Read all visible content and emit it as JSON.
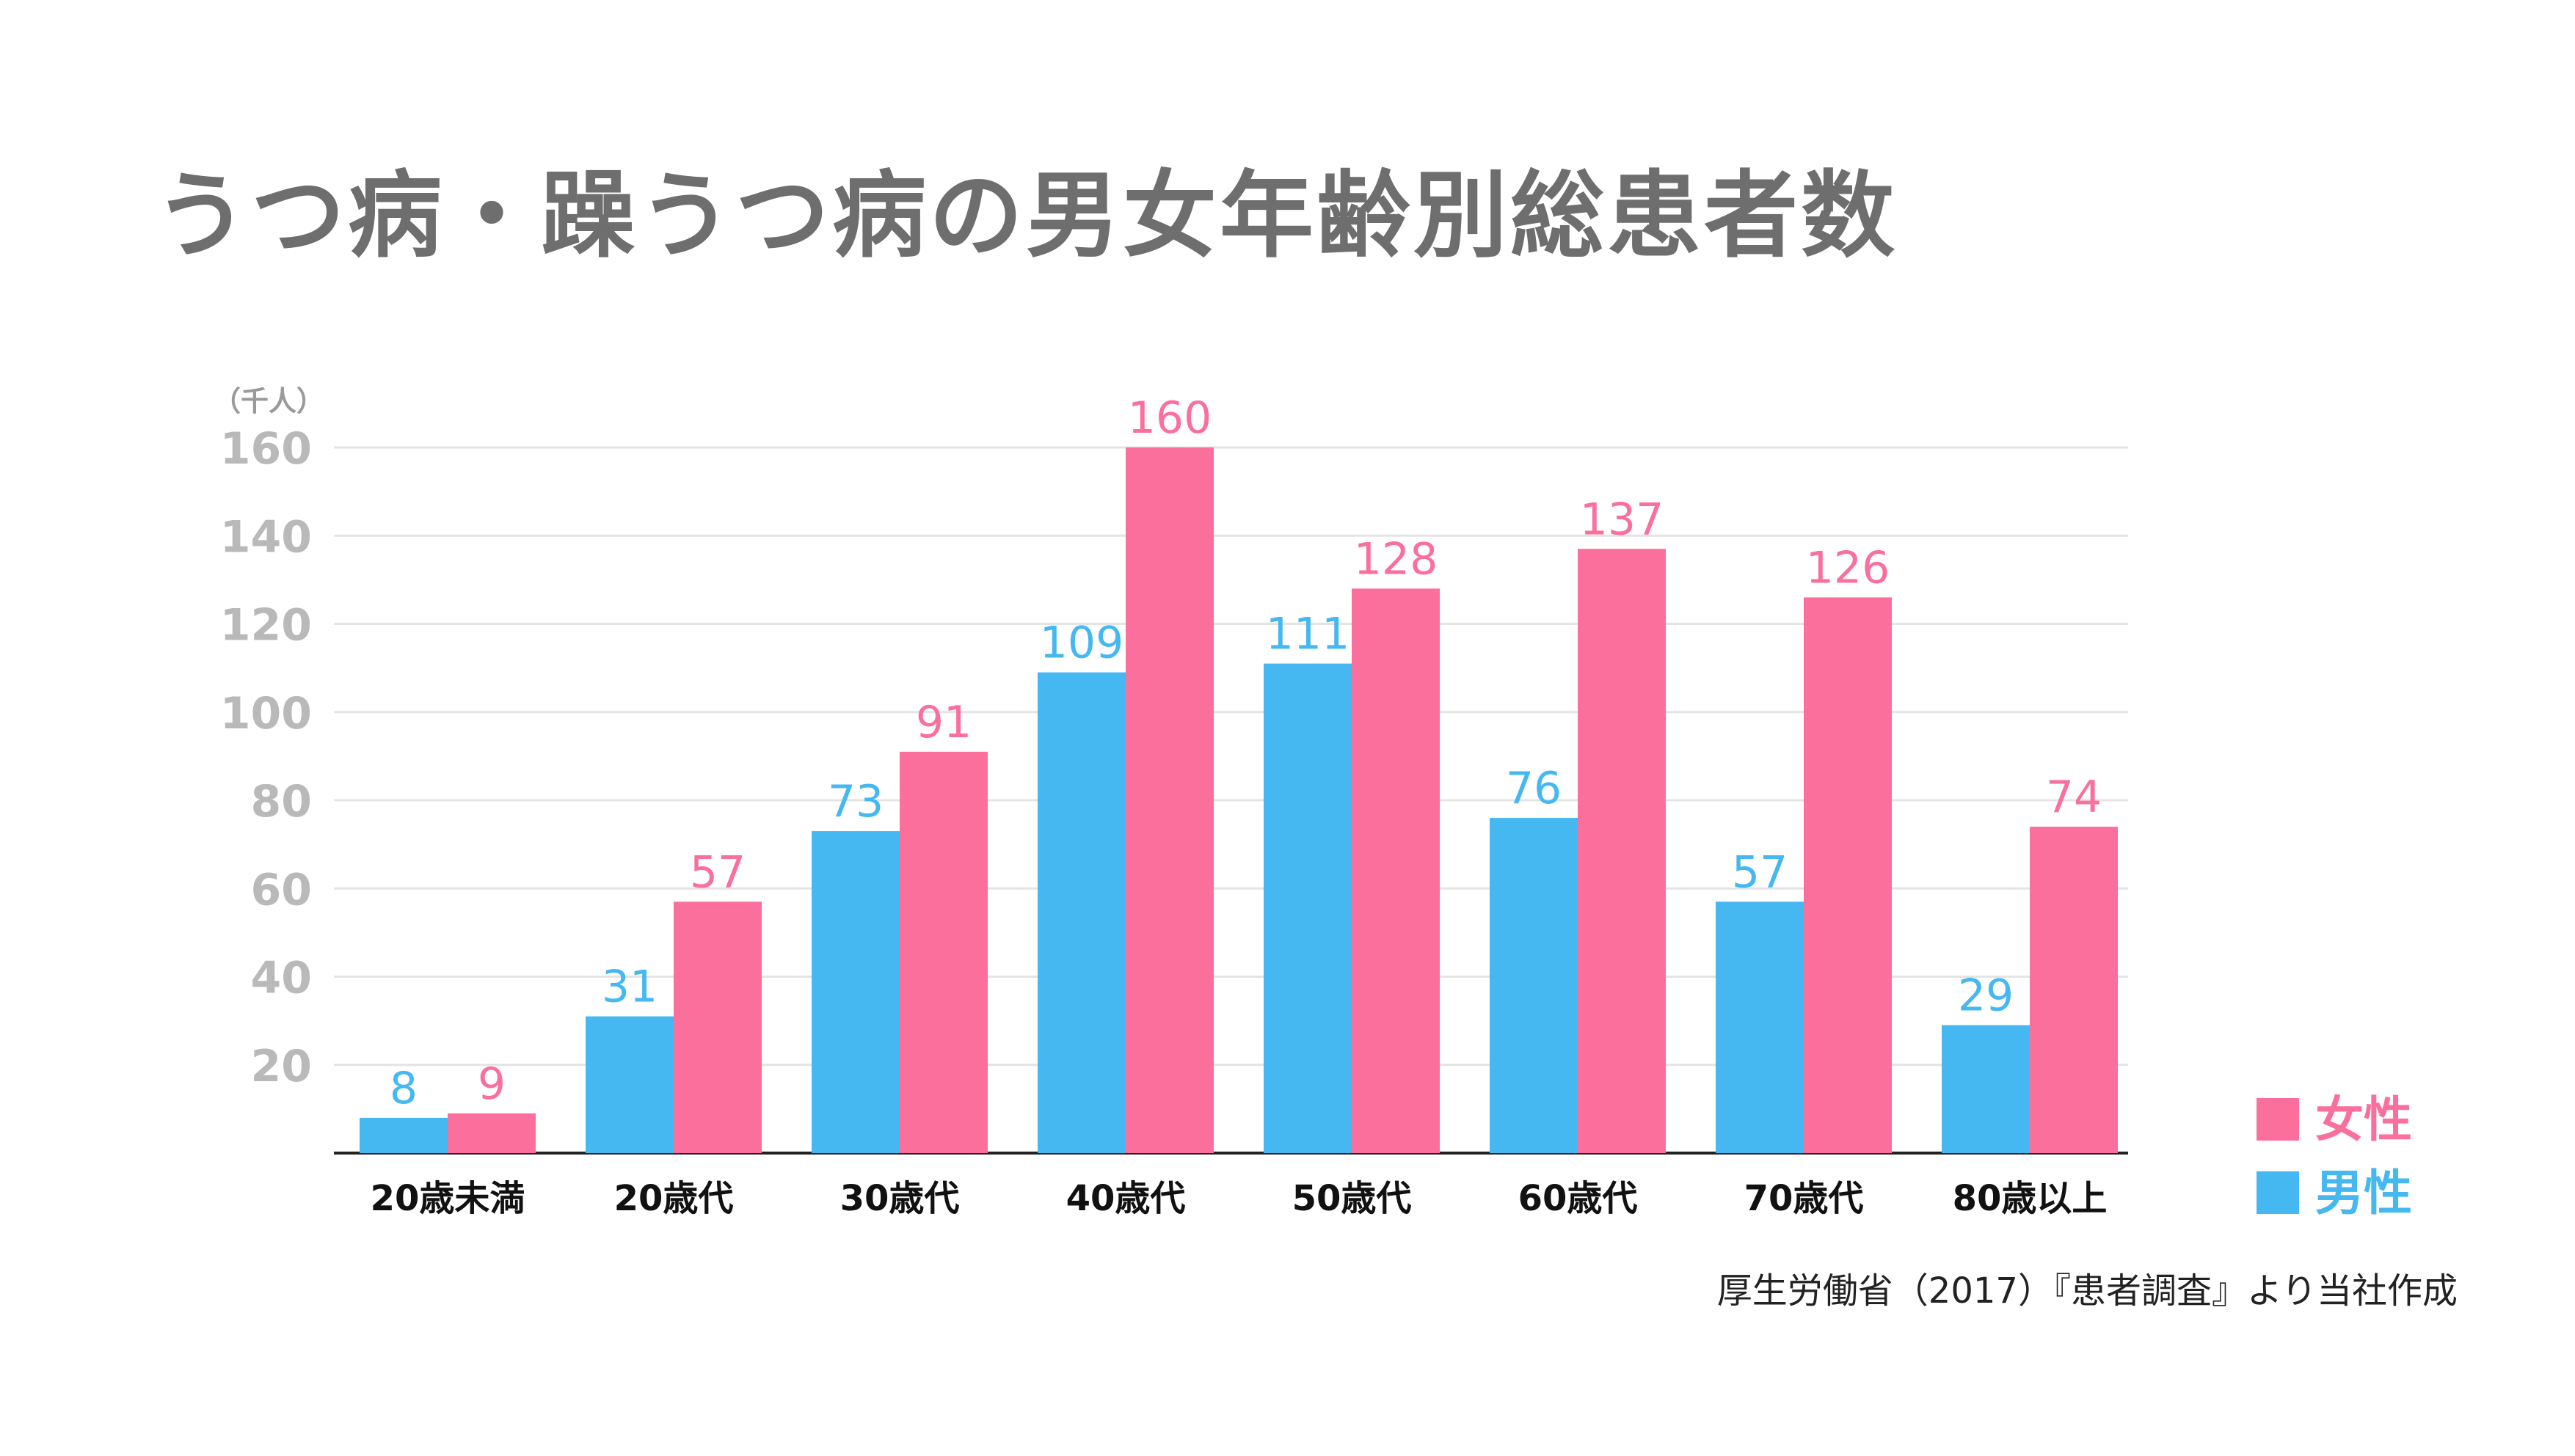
{
  "chart_data": {
    "type": "bar",
    "title": "うつ病・躁うつ病の男女年齢別総患者数",
    "unit_label": "（千人）",
    "categories": [
      "20歳未満",
      "20歳代",
      "30歳代",
      "40歳代",
      "50歳代",
      "60歳代",
      "70歳代",
      "80歳以上"
    ],
    "series": [
      {
        "name": "男性",
        "color": "#45b8f2",
        "values": [
          8,
          31,
          73,
          109,
          111,
          76,
          57,
          29
        ]
      },
      {
        "name": "女性",
        "color": "#fb6f9c",
        "values": [
          9,
          57,
          91,
          160,
          128,
          137,
          126,
          74
        ]
      }
    ],
    "ylim": [
      0,
      160
    ],
    "yticks": [
      20,
      40,
      60,
      80,
      100,
      120,
      140,
      160
    ],
    "grid": true,
    "legend_position": "bottom-right"
  },
  "source": "厚生労働省（2017）『患者調査』より当社作成"
}
